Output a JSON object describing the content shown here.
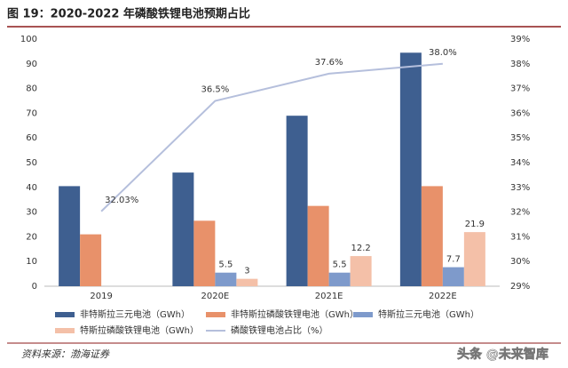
{
  "chart_data": {
    "type": "bar-line",
    "title": "图 19：2020-2022 年磷酸铁锂电池预期占比",
    "source": "资料来源：渤海证券",
    "watermark": "头条 @未来智库",
    "categories": [
      "2019",
      "2020E",
      "2021E",
      "2022E"
    ],
    "ylim": [
      0,
      100
    ],
    "yticks": [
      0,
      10,
      20,
      30,
      40,
      50,
      60,
      70,
      80,
      90,
      100
    ],
    "y2lim": [
      29,
      39
    ],
    "y2ticks": [
      {
        "value": 29,
        "label": "29%"
      },
      {
        "value": 30,
        "label": "30%"
      },
      {
        "value": 31,
        "label": "31%"
      },
      {
        "value": 32,
        "label": "32%"
      },
      {
        "value": 33,
        "label": "33%"
      },
      {
        "value": 34,
        "label": "34%"
      },
      {
        "value": 35,
        "label": "35%"
      },
      {
        "value": 36,
        "label": "36%"
      },
      {
        "value": 37,
        "label": "37%"
      },
      {
        "value": 38,
        "label": "38%"
      },
      {
        "value": 39,
        "label": "39%"
      }
    ],
    "legend": "bottom",
    "series": [
      {
        "name": "非特斯拉三元电池（GWh）",
        "color": "#3e5f90",
        "values": [
          40.5,
          46,
          69,
          94.5
        ]
      },
      {
        "name": "非特斯拉磷酸铁锂电池（GWh）",
        "color": "#e8916a",
        "values": [
          21,
          26.5,
          32.5,
          40.5
        ]
      },
      {
        "name": "特斯拉三元电池（GWh）",
        "color": "#7e9acb",
        "values": [
          null,
          5.5,
          5.5,
          7.7
        ],
        "show_labels": true
      },
      {
        "name": "特斯拉磷酸铁锂电池（GWh）",
        "color": "#f4c0a8",
        "values": [
          null,
          3,
          12.2,
          21.9
        ],
        "show_labels": true
      },
      {
        "name": "磷酸铁锂电池占比（%）",
        "color": "#b5bfdc",
        "axis": "y2",
        "values": [
          32.03,
          36.5,
          37.6,
          38.0
        ],
        "value_labels": [
          "32.03%",
          "36.5%",
          "37.6%",
          "38.0%"
        ]
      }
    ]
  }
}
